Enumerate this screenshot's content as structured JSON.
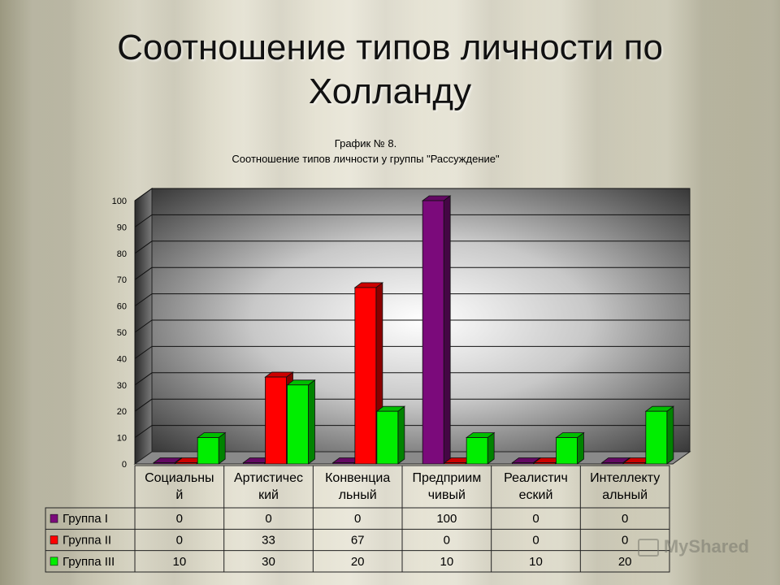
{
  "slide": {
    "title_line1": "Соотношение типов личности по",
    "title_line2": "Холланду"
  },
  "chart_data": {
    "type": "bar",
    "title": "График № 8.",
    "subtitle": "Соотношение типов личности у группы \"Рассуждение\"",
    "categories": [
      "Социальный",
      "Артистический",
      "Конвенциальный",
      "Предприимчивый",
      "Реалистический",
      "Интеллектуальный"
    ],
    "category_lines": [
      [
        "Социальны",
        "й"
      ],
      [
        "Артистичес",
        "кий"
      ],
      [
        "Конвенциа",
        "льный"
      ],
      [
        "Предприим",
        "чивый"
      ],
      [
        "Реалистич",
        "еский"
      ],
      [
        "Интеллекту",
        "альный"
      ]
    ],
    "series": [
      {
        "name": "Группа I",
        "values": [
          0,
          0,
          0,
          100,
          0,
          0
        ],
        "color": "#7b0a7b"
      },
      {
        "name": "Группа II",
        "values": [
          0,
          33,
          67,
          0,
          0,
          0
        ],
        "color": "#ff0000"
      },
      {
        "name": "Группа III",
        "values": [
          10,
          30,
          20,
          10,
          10,
          20
        ],
        "color": "#00ee00"
      }
    ],
    "ylim": [
      0,
      100
    ],
    "yticks": [
      "0",
      "10",
      "20",
      "30",
      "40",
      "50",
      "60",
      "70",
      "80",
      "90",
      "100"
    ],
    "grid": true,
    "legend": "data-table"
  },
  "watermark": "MyShared"
}
